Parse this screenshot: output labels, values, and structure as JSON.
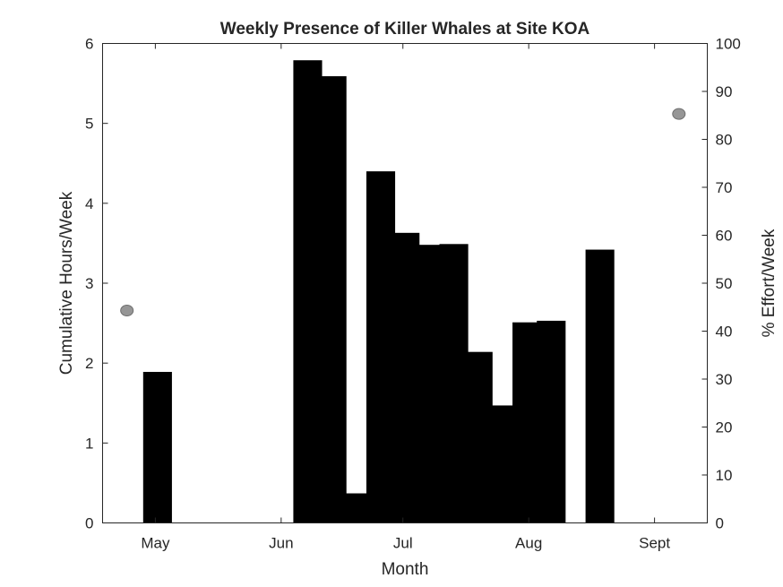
{
  "chart_data": {
    "type": "bar",
    "title": "Weekly Presence of Killer Whales at Site KOA",
    "xlabel": "Month",
    "ylabel": "Cumulative Hours/Week",
    "y2label": "% Effort/Week",
    "ylim": [
      0,
      6
    ],
    "y2lim": [
      0,
      100
    ],
    "yticks": [
      "0",
      "1",
      "2",
      "3",
      "4",
      "5",
      "6"
    ],
    "y2ticks": [
      "0",
      "10",
      "20",
      "30",
      "40",
      "50",
      "60",
      "70",
      "80",
      "90",
      "100"
    ],
    "x_range_days": [
      108,
      257
    ],
    "x_ticks": [
      {
        "label": "May",
        "day": 121
      },
      {
        "label": "Jun",
        "day": 152
      },
      {
        "label": "Jul",
        "day": 182
      },
      {
        "label": "Aug",
        "day": 213
      },
      {
        "label": "Sept",
        "day": 244
      }
    ],
    "grid": false,
    "series": [
      {
        "type": "bar",
        "axis": "left",
        "color": "#000000",
        "bars": [
          {
            "week_start_day": 118,
            "value": 1.89
          },
          {
            "week_start_day": 155,
            "value": 5.79
          },
          {
            "week_start_day": 161,
            "value": 5.59
          },
          {
            "week_start_day": 167,
            "value": 0.37
          },
          {
            "week_start_day": 173,
            "value": 4.4
          },
          {
            "week_start_day": 179,
            "value": 3.63
          },
          {
            "week_start_day": 185,
            "value": 3.48
          },
          {
            "week_start_day": 191,
            "value": 3.49
          },
          {
            "week_start_day": 197,
            "value": 2.14
          },
          {
            "week_start_day": 203,
            "value": 1.47
          },
          {
            "week_start_day": 209,
            "value": 2.51
          },
          {
            "week_start_day": 215,
            "value": 2.53
          },
          {
            "week_start_day": 227,
            "value": 3.42
          }
        ]
      },
      {
        "type": "scatter",
        "axis": "right",
        "color": "#969696",
        "points": [
          {
            "day": 114,
            "value": 44.3
          },
          {
            "day": 250,
            "value": 85.3
          }
        ]
      }
    ]
  }
}
